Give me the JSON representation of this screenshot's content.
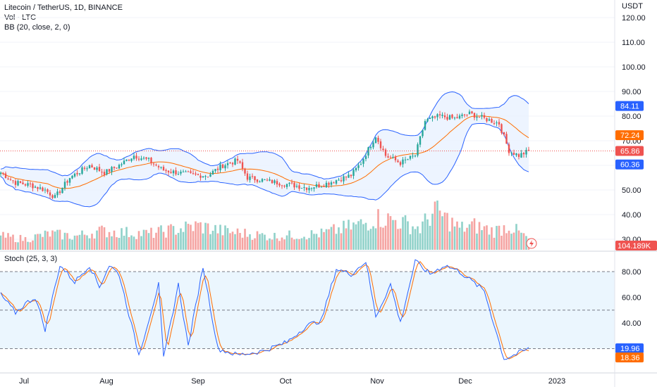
{
  "header": {
    "title": "Litecoin / TetherUS, 1D, BINANCE",
    "volume": "Vol · LTC",
    "bb": "BB (20, close, 2, 0)"
  },
  "stoch": {
    "label": "Stoch (25, 3, 3)"
  },
  "colors": {
    "up": "#26a69a",
    "down": "#ef5350",
    "vol_up": "#8fd1c9",
    "vol_down": "#f5a3a1",
    "band": "#2962ff",
    "basis": "#ff6d00",
    "band_fill": "#e8f1ff",
    "stoch_k": "#2962ff",
    "stoch_d": "#ff6d00",
    "stoch_bg": "#e3f2fd",
    "price_line": "#ef5350"
  },
  "chart_data": [
    {
      "type": "candlestick",
      "price_axis": {
        "unit": "USDT",
        "ticks": [
          "120.00",
          "110.00",
          "100.00",
          "90.00",
          "80.00",
          "70.00",
          "60.00",
          "50.00",
          "40.00",
          "30.00"
        ]
      },
      "x_ticks": [
        "Jul",
        "Aug",
        "Sep",
        "Oct",
        "Nov",
        "Dec",
        "2023"
      ],
      "price_tags": [
        {
          "label": "84.11",
          "value": 84.11,
          "color": "#2962ff"
        },
        {
          "label": "72.24",
          "value": 72.24,
          "color": "#ff6d00"
        },
        {
          "label": "65.86",
          "value": 65.86,
          "color": "#ef5350"
        },
        {
          "label": "60.36",
          "value": 60.36,
          "color": "#2962ff"
        }
      ],
      "volume_tag": "104.189K",
      "close_anchors": [
        [
          0,
          57
        ],
        [
          6,
          53
        ],
        [
          12,
          52
        ],
        [
          18,
          50
        ],
        [
          22,
          47
        ],
        [
          28,
          55
        ],
        [
          36,
          60
        ],
        [
          42,
          57
        ],
        [
          48,
          60
        ],
        [
          54,
          64
        ],
        [
          60,
          62
        ],
        [
          66,
          58
        ],
        [
          72,
          57
        ],
        [
          78,
          56
        ],
        [
          84,
          56
        ],
        [
          90,
          60
        ],
        [
          96,
          62
        ],
        [
          100,
          55
        ],
        [
          106,
          54
        ],
        [
          112,
          53
        ],
        [
          118,
          52
        ],
        [
          124,
          51
        ],
        [
          130,
          52
        ],
        [
          136,
          54
        ],
        [
          142,
          56
        ],
        [
          146,
          61
        ],
        [
          152,
          72
        ],
        [
          156,
          64
        ],
        [
          162,
          61
        ],
        [
          168,
          64
        ],
        [
          172,
          78
        ],
        [
          178,
          80
        ],
        [
          184,
          79
        ],
        [
          190,
          81
        ],
        [
          196,
          79
        ],
        [
          202,
          77
        ],
        [
          206,
          66
        ],
        [
          210,
          64
        ],
        [
          214,
          65.86
        ]
      ],
      "volume_anchors": [
        [
          0,
          0.25
        ],
        [
          10,
          0.2
        ],
        [
          20,
          0.3
        ],
        [
          30,
          0.25
        ],
        [
          40,
          0.35
        ],
        [
          60,
          0.3
        ],
        [
          80,
          0.45
        ],
        [
          90,
          0.35
        ],
        [
          110,
          0.25
        ],
        [
          130,
          0.3
        ],
        [
          148,
          0.5
        ],
        [
          152,
          0.6
        ],
        [
          160,
          0.55
        ],
        [
          170,
          0.4
        ],
        [
          176,
          0.75
        ],
        [
          180,
          0.6
        ],
        [
          186,
          0.4
        ],
        [
          192,
          0.45
        ],
        [
          200,
          0.35
        ],
        [
          206,
          0.45
        ],
        [
          214,
          0.2
        ]
      ]
    },
    {
      "type": "line",
      "title": "Stoch (25, 3, 3)",
      "y_ticks": [
        "80.00",
        "60.00",
        "40.00"
      ],
      "levels": [
        80,
        50,
        20
      ],
      "tags": [
        {
          "label": "19.96",
          "value": 19.96,
          "color": "#2962ff"
        },
        {
          "label": "18.36",
          "value": 18.36,
          "color": "#ff6d00"
        }
      ],
      "k_anchors": [
        [
          0,
          62
        ],
        [
          6,
          48
        ],
        [
          10,
          55
        ],
        [
          14,
          60
        ],
        [
          18,
          35
        ],
        [
          24,
          85
        ],
        [
          30,
          72
        ],
        [
          36,
          85
        ],
        [
          40,
          68
        ],
        [
          44,
          85
        ],
        [
          48,
          78
        ],
        [
          56,
          15
        ],
        [
          64,
          70
        ],
        [
          66,
          12
        ],
        [
          72,
          70
        ],
        [
          76,
          22
        ],
        [
          82,
          84
        ],
        [
          88,
          20
        ],
        [
          96,
          15
        ],
        [
          106,
          18
        ],
        [
          116,
          25
        ],
        [
          124,
          38
        ],
        [
          130,
          42
        ],
        [
          136,
          82
        ],
        [
          142,
          78
        ],
        [
          148,
          88
        ],
        [
          152,
          45
        ],
        [
          158,
          70
        ],
        [
          162,
          40
        ],
        [
          168,
          88
        ],
        [
          174,
          78
        ],
        [
          180,
          85
        ],
        [
          186,
          80
        ],
        [
          196,
          65
        ],
        [
          204,
          12
        ],
        [
          208,
          15
        ],
        [
          214,
          19.96
        ]
      ]
    }
  ]
}
